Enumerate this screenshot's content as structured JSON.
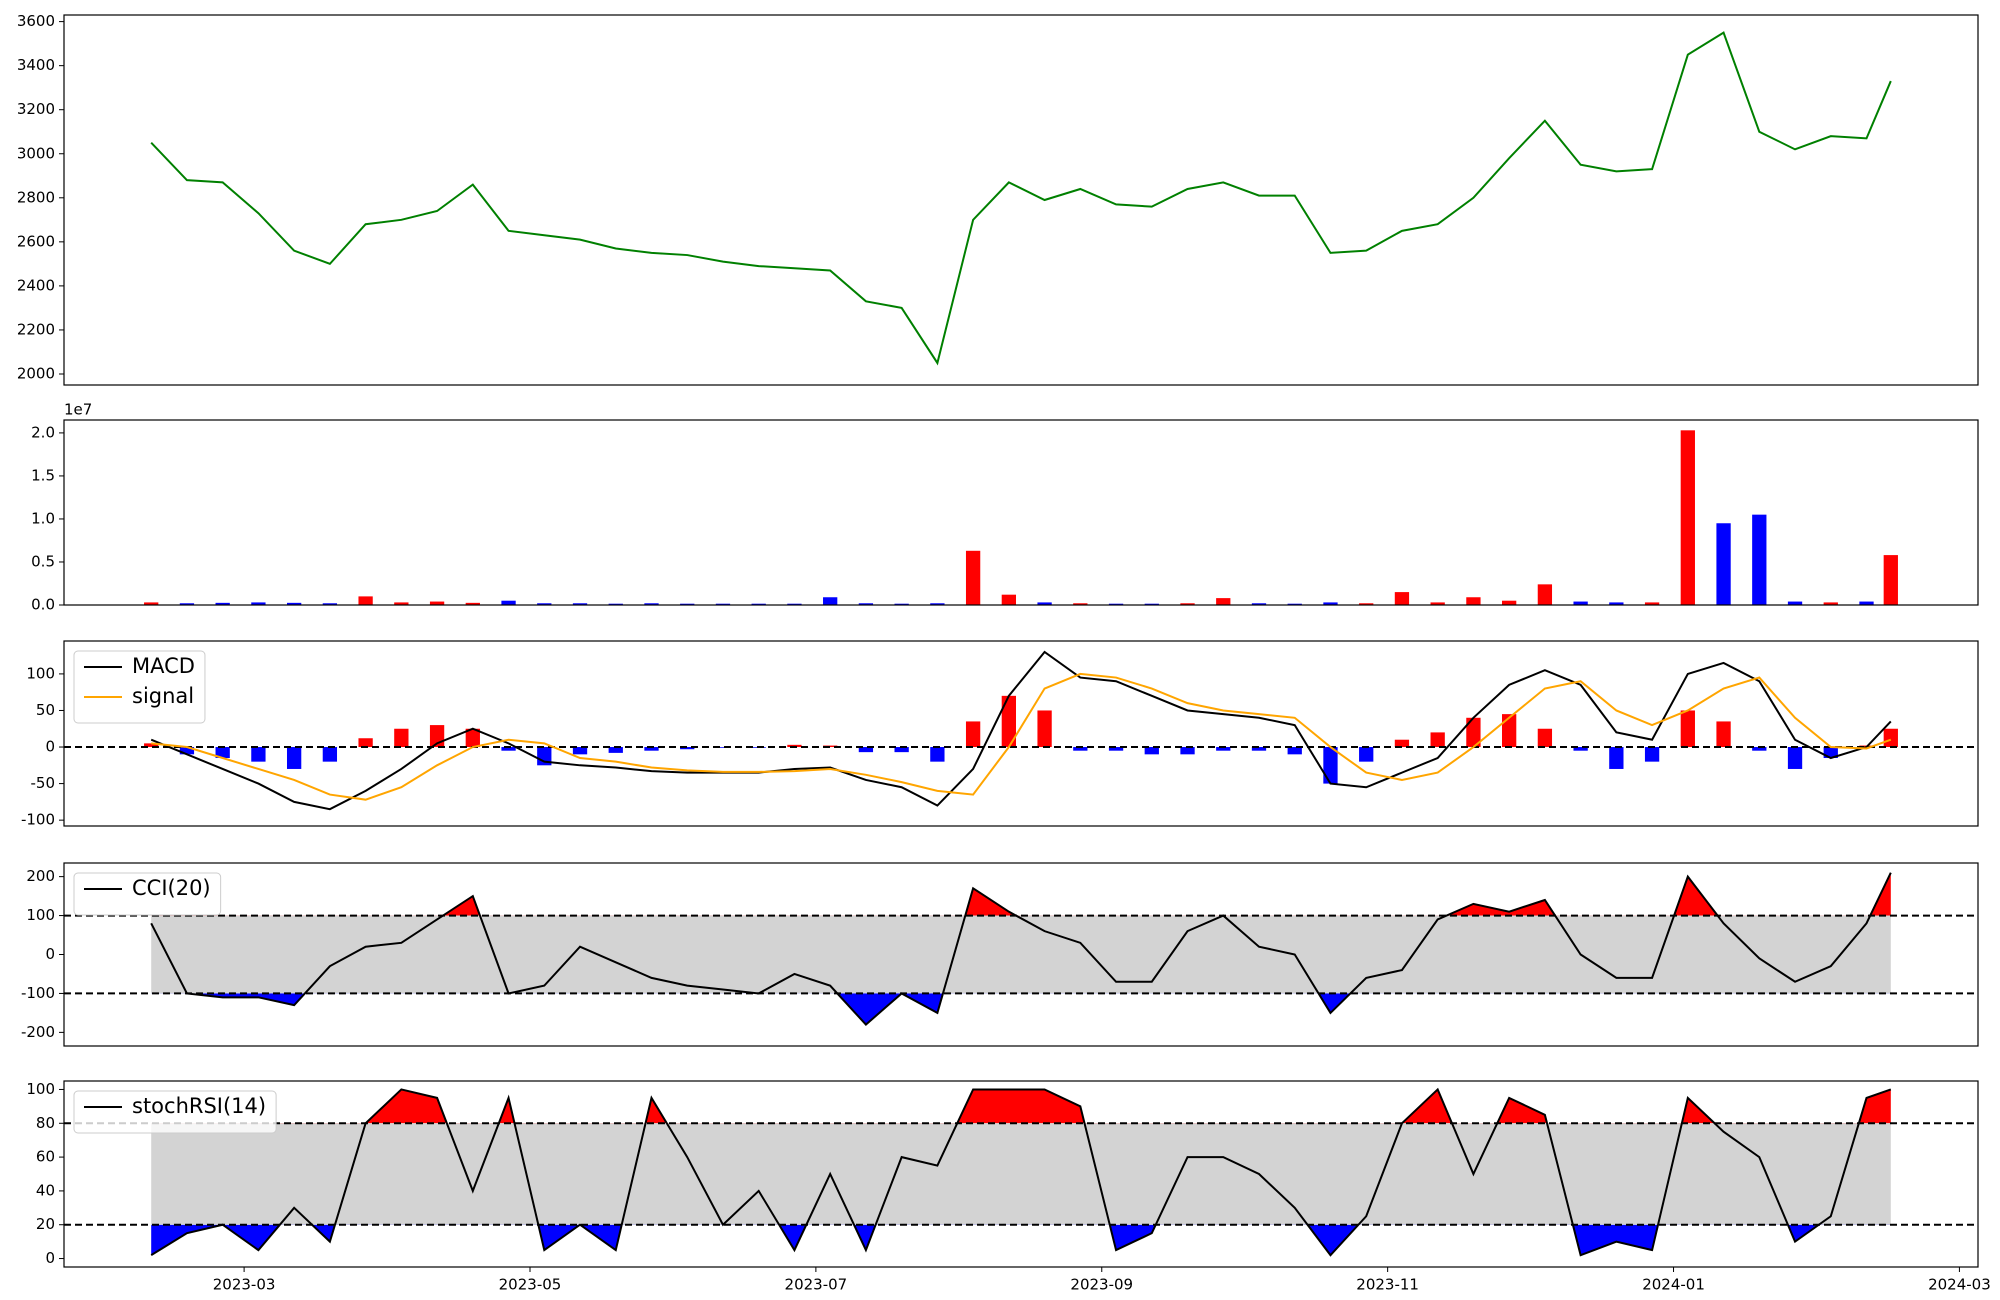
{
  "chart_data": [
    {
      "type": "line",
      "x": [
        1.35,
        1.6,
        1.85,
        2.1,
        2.35,
        2.6,
        2.85,
        3.1,
        3.35,
        3.6,
        3.85,
        4.1,
        4.35,
        4.6,
        4.85,
        5.1,
        5.35,
        5.6,
        5.85,
        6.1,
        6.35,
        6.6,
        6.85,
        7.1,
        7.35,
        7.6,
        7.85,
        8.1,
        8.35,
        8.6,
        8.85,
        9.1,
        9.35,
        9.6,
        9.85,
        10.1,
        10.35,
        10.6,
        10.85,
        11.1,
        11.35,
        11.6,
        11.85,
        12.1,
        12.35,
        12.6,
        12.85,
        13.1,
        13.35,
        13.52
      ],
      "series": [
        {
          "color": "green",
          "values": [
            3050,
            2880,
            2870,
            2730,
            2560,
            2500,
            2680,
            2700,
            2740,
            2860,
            2650,
            2630,
            2610,
            2570,
            2550,
            2540,
            2510,
            2490,
            2480,
            2470,
            2330,
            2300,
            2050,
            2700,
            2870,
            2790,
            2840,
            2770,
            2760,
            2840,
            2870,
            2810,
            2810,
            2550,
            2560,
            2650,
            2680,
            2800,
            2980,
            3150,
            2950,
            2920,
            2930,
            3450,
            3550,
            3100,
            3020,
            3080,
            3070,
            3330
          ]
        }
      ],
      "xlim": [
        0.74,
        14.13
      ],
      "ylim": [
        1950,
        3630
      ],
      "yticks": [
        2000,
        2200,
        2400,
        2600,
        2800,
        3000,
        3200,
        3400,
        3600
      ]
    },
    {
      "type": "bar",
      "x": [
        1.35,
        1.6,
        1.85,
        2.1,
        2.35,
        2.6,
        2.85,
        3.1,
        3.35,
        3.6,
        3.85,
        4.1,
        4.35,
        4.6,
        4.85,
        5.1,
        5.35,
        5.6,
        5.85,
        6.1,
        6.35,
        6.6,
        6.85,
        7.1,
        7.35,
        7.6,
        7.85,
        8.1,
        8.35,
        8.6,
        8.85,
        9.1,
        9.35,
        9.6,
        9.85,
        10.1,
        10.35,
        10.6,
        10.85,
        11.1,
        11.35,
        11.6,
        11.85,
        12.1,
        12.35,
        12.6,
        12.85,
        13.1,
        13.35,
        13.52
      ],
      "values": [
        300000,
        200000,
        250000,
        300000,
        250000,
        200000,
        1000000,
        300000,
        400000,
        250000,
        500000,
        200000,
        200000,
        150000,
        200000,
        150000,
        150000,
        150000,
        150000,
        900000,
        200000,
        150000,
        200000,
        6300000,
        1200000,
        300000,
        200000,
        150000,
        150000,
        200000,
        800000,
        200000,
        150000,
        300000,
        200000,
        1500000,
        300000,
        900000,
        500000,
        2400000,
        400000,
        300000,
        300000,
        20300000,
        9500000,
        10500000,
        400000,
        300000,
        400000,
        5800000
      ],
      "colors": [
        "red",
        "blue",
        "blue",
        "blue",
        "blue",
        "blue",
        "red",
        "red",
        "red",
        "red",
        "blue",
        "blue",
        "blue",
        "blue",
        "blue",
        "blue",
        "blue",
        "blue",
        "blue",
        "blue",
        "blue",
        "blue",
        "blue",
        "red",
        "red",
        "blue",
        "red",
        "blue",
        "blue",
        "red",
        "red",
        "blue",
        "blue",
        "blue",
        "red",
        "red",
        "red",
        "red",
        "red",
        "red",
        "blue",
        "blue",
        "red",
        "red",
        "blue",
        "blue",
        "blue",
        "red",
        "blue",
        "red"
      ],
      "offset_text": "1e7",
      "xlim": [
        0.74,
        14.13
      ],
      "ylim": [
        0,
        21500000
      ],
      "yticks": [
        {
          "value": 0,
          "label": "0.0"
        },
        {
          "value": 5000000,
          "label": "0.5"
        },
        {
          "value": 10000000,
          "label": "1.0"
        },
        {
          "value": 15000000,
          "label": "1.5"
        },
        {
          "value": 20000000,
          "label": "2.0"
        }
      ]
    },
    {
      "type": "line",
      "x": [
        1.35,
        1.6,
        1.85,
        2.1,
        2.35,
        2.6,
        2.85,
        3.1,
        3.35,
        3.6,
        3.85,
        4.1,
        4.35,
        4.6,
        4.85,
        5.1,
        5.35,
        5.6,
        5.85,
        6.1,
        6.35,
        6.6,
        6.85,
        7.1,
        7.35,
        7.6,
        7.85,
        8.1,
        8.35,
        8.6,
        8.85,
        9.1,
        9.35,
        9.6,
        9.85,
        10.1,
        10.35,
        10.6,
        10.85,
        11.1,
        11.35,
        11.6,
        11.85,
        12.1,
        12.35,
        12.6,
        12.85,
        13.1,
        13.35,
        13.52
      ],
      "series": [
        {
          "name": "MACD",
          "color": "black",
          "values": [
            10,
            -10,
            -30,
            -50,
            -75,
            -85,
            -60,
            -30,
            5,
            25,
            5,
            -20,
            -25,
            -28,
            -33,
            -35,
            -35,
            -35,
            -30,
            -28,
            -45,
            -55,
            -80,
            -30,
            70,
            130,
            95,
            90,
            70,
            50,
            45,
            40,
            30,
            -50,
            -55,
            -35,
            -15,
            40,
            85,
            105,
            85,
            20,
            10,
            100,
            115,
            90,
            10,
            -15,
            0,
            35
          ]
        },
        {
          "name": "signal",
          "color": "orange",
          "values": [
            5,
            0,
            -15,
            -30,
            -45,
            -65,
            -72,
            -55,
            -25,
            0,
            10,
            5,
            -15,
            -20,
            -28,
            -32,
            -34,
            -34,
            -33,
            -30,
            -38,
            -48,
            -60,
            -65,
            0,
            80,
            100,
            95,
            80,
            60,
            50,
            45,
            40,
            0,
            -35,
            -45,
            -35,
            0,
            40,
            80,
            90,
            50,
            30,
            50,
            80,
            95,
            40,
            0,
            -2,
            10
          ]
        }
      ],
      "histogram": [
        5,
        -10,
        -15,
        -20,
        -30,
        -20,
        12,
        25,
        30,
        25,
        -5,
        -25,
        -10,
        -8,
        -5,
        -3,
        -1,
        -1,
        3,
        2,
        -7,
        -7,
        -20,
        35,
        70,
        50,
        -5,
        -5,
        -10,
        -10,
        -5,
        -5,
        -10,
        -50,
        -20,
        10,
        20,
        40,
        45,
        25,
        -5,
        -30,
        -20,
        50,
        35,
        -5,
        -30,
        -15,
        2,
        25
      ],
      "histogram_colors": {
        "positive": "red",
        "negative": "blue"
      },
      "reference_lines": [
        0
      ],
      "legend": "upper left",
      "xlim": [
        0.74,
        14.13
      ],
      "ylim": [
        -108,
        145
      ],
      "yticks": [
        -100,
        -50,
        0,
        50,
        100
      ]
    },
    {
      "type": "line",
      "x": [
        1.35,
        1.6,
        1.85,
        2.1,
        2.35,
        2.6,
        2.85,
        3.1,
        3.35,
        3.6,
        3.85,
        4.1,
        4.35,
        4.6,
        4.85,
        5.1,
        5.35,
        5.6,
        5.85,
        6.1,
        6.35,
        6.6,
        6.85,
        7.1,
        7.35,
        7.6,
        7.85,
        8.1,
        8.35,
        8.6,
        8.85,
        9.1,
        9.35,
        9.6,
        9.85,
        10.1,
        10.35,
        10.6,
        10.85,
        11.1,
        11.35,
        11.6,
        11.85,
        12.1,
        12.35,
        12.6,
        12.85,
        13.1,
        13.35,
        13.52
      ],
      "series": [
        {
          "name": "CCI(20)",
          "color": "black",
          "values": [
            80,
            -100,
            -110,
            -110,
            -130,
            -30,
            20,
            30,
            90,
            150,
            -100,
            -80,
            20,
            -20,
            -60,
            -80,
            -90,
            -100,
            -50,
            -80,
            -180,
            -100,
            -150,
            170,
            110,
            60,
            30,
            -70,
            -70,
            60,
            100,
            20,
            0,
            -150,
            -60,
            -40,
            90,
            130,
            110,
            140,
            0,
            -60,
            -60,
            200,
            80,
            -10,
            -70,
            -30,
            80,
            210
          ]
        }
      ],
      "thresholds": [
        -100,
        100
      ],
      "band_color": "lightgray",
      "above_color": "red",
      "below_color": "blue",
      "legend": "upper left",
      "xlim": [
        0.74,
        14.13
      ],
      "ylim": [
        -235,
        235
      ],
      "yticks": [
        -200,
        -100,
        0,
        100,
        200
      ]
    },
    {
      "type": "line",
      "x": [
        1.35,
        1.6,
        1.85,
        2.1,
        2.35,
        2.6,
        2.85,
        3.1,
        3.35,
        3.6,
        3.85,
        4.1,
        4.35,
        4.6,
        4.85,
        5.1,
        5.35,
        5.6,
        5.85,
        6.1,
        6.35,
        6.6,
        6.85,
        7.1,
        7.35,
        7.6,
        7.85,
        8.1,
        8.35,
        8.6,
        8.85,
        9.1,
        9.35,
        9.6,
        9.85,
        10.1,
        10.35,
        10.6,
        10.85,
        11.1,
        11.35,
        11.6,
        11.85,
        12.1,
        12.35,
        12.6,
        12.85,
        13.1,
        13.35,
        13.52
      ],
      "series": [
        {
          "name": "stochRSI(14)",
          "color": "black",
          "values": [
            2,
            15,
            20,
            5,
            30,
            10,
            80,
            100,
            95,
            40,
            95,
            5,
            20,
            5,
            95,
            60,
            20,
            40,
            5,
            50,
            5,
            60,
            55,
            100,
            100,
            100,
            90,
            5,
            15,
            60,
            60,
            50,
            30,
            2,
            25,
            80,
            100,
            50,
            95,
            85,
            2,
            10,
            5,
            95,
            75,
            60,
            10,
            25,
            95,
            100
          ]
        }
      ],
      "thresholds": [
        20,
        80
      ],
      "band_color": "lightgray",
      "above_color": "red",
      "below_color": "blue",
      "legend": "upper left",
      "xlim": [
        0.74,
        14.13
      ],
      "ylim": [
        -5,
        105
      ],
      "yticks": [
        0,
        20,
        40,
        60,
        80,
        100
      ],
      "xticks": [
        {
          "value": 2,
          "label": "2023-03"
        },
        {
          "value": 4,
          "label": "2023-05"
        },
        {
          "value": 6,
          "label": "2023-07"
        },
        {
          "value": 8,
          "label": "2023-09"
        },
        {
          "value": 10,
          "label": "2023-11"
        },
        {
          "value": 12,
          "label": "2024-01"
        },
        {
          "value": 14,
          "label": "2024-03"
        }
      ]
    }
  ]
}
